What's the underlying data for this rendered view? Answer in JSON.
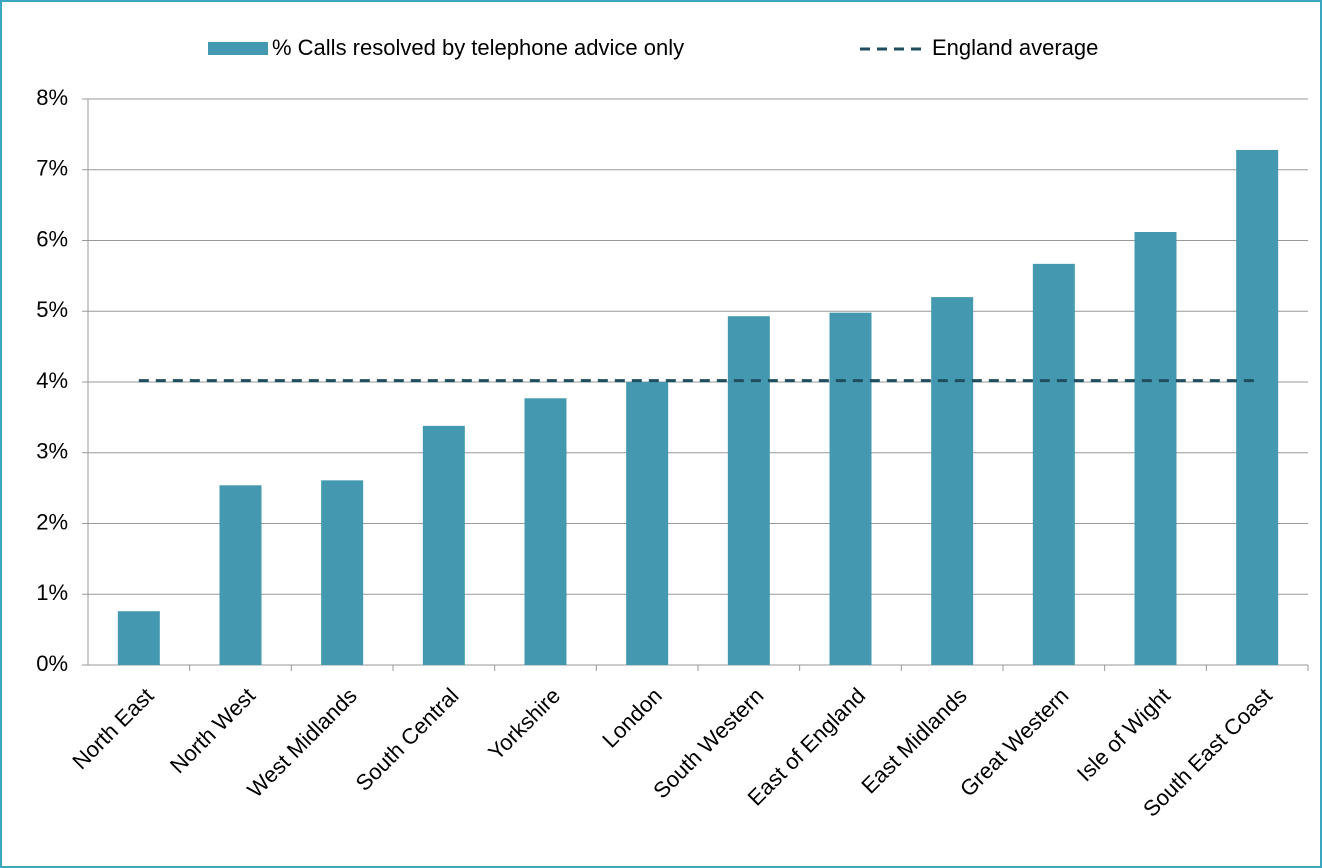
{
  "chart_data": {
    "type": "bar",
    "categories": [
      "North East",
      "North West",
      "West Midlands",
      "South Central",
      "Yorkshire",
      "London",
      "South Western",
      "East of England",
      "East Midlands",
      "Great Western",
      "Isle of Wight",
      "South East Coast"
    ],
    "series": [
      {
        "name": "% Calls resolved by telephone advice only",
        "color": "#4499b0",
        "values": [
          0.76,
          2.54,
          2.61,
          3.38,
          3.77,
          4.0,
          4.93,
          4.98,
          5.2,
          5.67,
          6.12,
          7.28
        ]
      }
    ],
    "reference_line": {
      "name": "England average",
      "value": 4.02,
      "color": "#1f4e5f"
    },
    "ylim": [
      0,
      8
    ],
    "yticks": [
      {
        "value": 0,
        "label": "0%"
      },
      {
        "value": 1,
        "label": "1%"
      },
      {
        "value": 2,
        "label": "2%"
      },
      {
        "value": 3,
        "label": "3%"
      },
      {
        "value": 4,
        "label": "4%"
      },
      {
        "value": 5,
        "label": "5%"
      },
      {
        "value": 6,
        "label": "6%"
      },
      {
        "value": 7,
        "label": "7%"
      },
      {
        "value": 8,
        "label": "8%"
      }
    ],
    "grid": true,
    "legend": "top"
  }
}
